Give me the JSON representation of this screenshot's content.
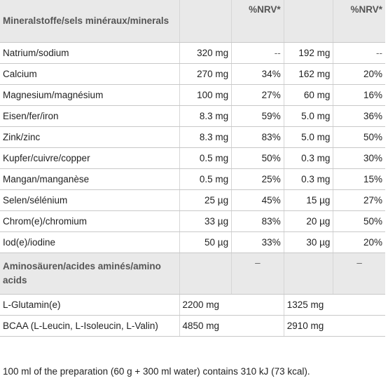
{
  "header": {
    "name": "Mineralstoffe/sels minéraux/minerals",
    "nrv1": "%NRV*",
    "nrv2": "%NRV*"
  },
  "minerals": [
    {
      "name": "Natrium/sodium",
      "amount1": "320 mg",
      "nrv1": "--",
      "amount2": "192 mg",
      "nrv2": "--"
    },
    {
      "name": "Calcium",
      "amount1": "270 mg",
      "nrv1": "34%",
      "amount2": "162 mg",
      "nrv2": "20%"
    },
    {
      "name": "Magnesium/magnésium",
      "amount1": "100 mg",
      "nrv1": "27%",
      "amount2": "60 mg",
      "nrv2": "16%"
    },
    {
      "name": "Eisen/fer/iron",
      "amount1": "8.3 mg",
      "nrv1": "59%",
      "amount2": "5.0 mg",
      "nrv2": "36%"
    },
    {
      "name": "Zink/zinc",
      "amount1": "8.3 mg",
      "nrv1": "83%",
      "amount2": "5.0 mg",
      "nrv2": "50%"
    },
    {
      "name": "Kupfer/cuivre/copper",
      "amount1": "0.5 mg",
      "nrv1": "50%",
      "amount2": "0.3 mg",
      "nrv2": "30%"
    },
    {
      "name": "Mangan/manganèse",
      "amount1": "0.5 mg",
      "nrv1": "25%",
      "amount2": "0.3 mg",
      "nrv2": "15%"
    },
    {
      "name": "Selen/sélénium",
      "amount1": "25 µg",
      "nrv1": "45%",
      "amount2": "15 µg",
      "nrv2": "27%"
    },
    {
      "name": "Chrom(e)/chromium",
      "amount1": "33 µg",
      "nrv1": "83%",
      "amount2": "20 µg",
      "nrv2": "50%"
    },
    {
      "name": "Iod(e)/iodine",
      "amount1": "50 µg",
      "nrv1": "33%",
      "amount2": "30 µg",
      "nrv2": "20%"
    }
  ],
  "amino_section": {
    "name": "Aminosäuren/acides aminés/amino acids",
    "dash1": "–",
    "dash2": "–"
  },
  "amino": [
    {
      "name": "L-Glutamin(e)",
      "amount1": "2200 mg",
      "amount2": "1325 mg"
    },
    {
      "name": "BCAA (L-Leucin, L-Isoleucin, L-Valin)",
      "amount1": "4850 mg",
      "amount2": "2910 mg"
    }
  ],
  "footnote": "100 ml of the preparation (60 g + 300 ml water) contains 310 kJ (73 kcal)."
}
